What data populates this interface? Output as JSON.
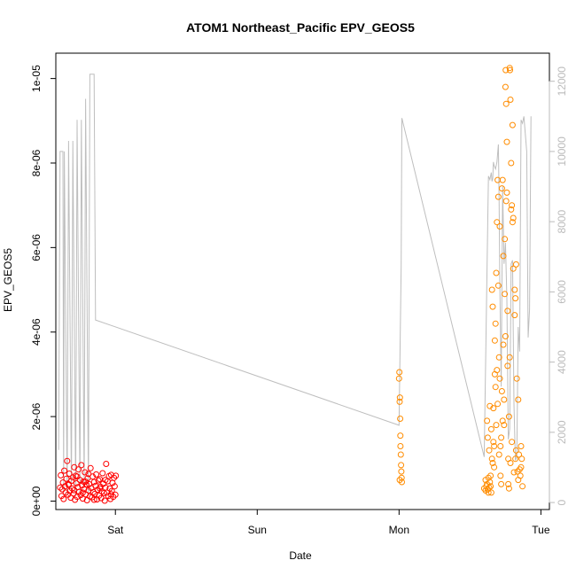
{
  "chart_data": {
    "type": "scatter",
    "title": "ATOM1 Northeast_Pacific EPV_GEOS5",
    "xlabel": "Date",
    "ylabel": "EPV_GEOS5",
    "x_unit": "days",
    "xlim": [
      -0.42,
      3.06
    ],
    "ylim": [
      -2e-07,
      1.06e-05
    ],
    "y2lim": [
      -200,
      12800
    ],
    "x_ticks": [
      {
        "value": 0,
        "label": "Sat"
      },
      {
        "value": 1,
        "label": "Sun"
      },
      {
        "value": 2,
        "label": "Mon"
      },
      {
        "value": 3,
        "label": "Tue"
      }
    ],
    "y_ticks": [
      {
        "value": 0,
        "label": "0e+00"
      },
      {
        "value": 2e-06,
        "label": "2e-06"
      },
      {
        "value": 4e-06,
        "label": "4e-06"
      },
      {
        "value": 6e-06,
        "label": "6e-06"
      },
      {
        "value": 8e-06,
        "label": "8e-06"
      },
      {
        "value": 1e-05,
        "label": "1e-05"
      }
    ],
    "y2_ticks": [
      {
        "value": 0,
        "label": "0"
      },
      {
        "value": 2000,
        "label": "2000"
      },
      {
        "value": 4000,
        "label": "4000"
      },
      {
        "value": 6000,
        "label": "6000"
      },
      {
        "value": 8000,
        "label": "8000"
      },
      {
        "value": 10000,
        "label": "10000"
      },
      {
        "value": 12000,
        "label": "12000"
      }
    ],
    "grid": false,
    "colors": {
      "early": "#ff0000",
      "late": "#ff8c00",
      "altitude": "#bebebe",
      "axis": "#000000",
      "right_axis": "#bbbbbb"
    },
    "series": [
      {
        "values": [
          [
            -0.39,
            3.2e-07
          ],
          [
            -0.385,
            6.1e-07
          ],
          [
            -0.38,
            1.2e-07
          ],
          [
            -0.375,
            2.8e-07
          ],
          [
            -0.37,
            4.4e-07
          ],
          [
            -0.365,
            5e-08
          ],
          [
            -0.36,
            7.2e-07
          ],
          [
            -0.355,
            3.5e-07
          ],
          [
            -0.35,
            2e-07
          ],
          [
            -0.345,
            5.3e-07
          ],
          [
            -0.34,
            9.5e-07
          ],
          [
            -0.335,
            1.5e-07
          ],
          [
            -0.33,
            3.8e-07
          ],
          [
            -0.325,
            6.5e-07
          ],
          [
            -0.32,
            2.4e-07
          ],
          [
            -0.315,
            8e-08
          ],
          [
            -0.31,
            4.8e-07
          ],
          [
            -0.305,
            3e-07
          ],
          [
            -0.3,
            5.6e-07
          ],
          [
            -0.295,
            1.8e-07
          ],
          [
            -0.29,
            2.6e-07
          ],
          [
            -0.285,
            3e-08
          ],
          [
            -0.28,
            6e-07
          ],
          [
            -0.275,
            4.2e-07
          ],
          [
            -0.27,
            1e-07
          ],
          [
            -0.265,
            3.3e-07
          ],
          [
            -0.26,
            7.5e-07
          ],
          [
            -0.255,
            2.2e-07
          ],
          [
            -0.25,
            5e-07
          ],
          [
            -0.245,
            1.4e-07
          ],
          [
            -0.24,
            8.5e-07
          ],
          [
            -0.235,
            3.7e-07
          ],
          [
            -0.23,
            6e-08
          ],
          [
            -0.225,
            4.6e-07
          ],
          [
            -0.22,
            2.9e-07
          ],
          [
            -0.215,
            6.8e-07
          ],
          [
            -0.21,
            1.6e-07
          ],
          [
            -0.205,
            3.9e-07
          ],
          [
            -0.2,
            2e-08
          ],
          [
            -0.195,
            5.4e-07
          ],
          [
            -0.19,
            2.5e-07
          ],
          [
            -0.185,
            4e-07
          ],
          [
            -0.18,
            1.1e-07
          ],
          [
            -0.175,
            7.8e-07
          ],
          [
            -0.17,
            3.1e-07
          ],
          [
            -0.165,
            9e-08
          ],
          [
            -0.16,
            5.8e-07
          ],
          [
            -0.155,
            2.1e-07
          ],
          [
            -0.15,
            4.5e-07
          ],
          [
            -0.145,
            1.7e-07
          ],
          [
            -0.14,
            3.6e-07
          ],
          [
            -0.135,
            6.3e-07
          ],
          [
            -0.13,
            4e-08
          ],
          [
            -0.125,
            2.7e-07
          ],
          [
            -0.12,
            4.9e-07
          ],
          [
            -0.115,
            1.3e-07
          ],
          [
            -0.11,
            5.2e-07
          ],
          [
            -0.105,
            3.4e-07
          ],
          [
            -0.1,
            7e-08
          ],
          [
            -0.095,
            2.3e-07
          ],
          [
            -0.09,
            6.6e-07
          ],
          [
            -0.085,
            4.1e-07
          ],
          [
            -0.08,
            1.9e-07
          ],
          [
            -0.075,
            1e-08
          ],
          [
            -0.07,
            3.2e-07
          ],
          [
            -0.065,
            8.8e-07
          ],
          [
            -0.06,
            2e-07
          ],
          [
            -0.055,
            4.7e-07
          ],
          [
            -0.05,
            1.2e-07
          ],
          [
            -0.045,
            5.9e-07
          ],
          [
            -0.04,
            3e-07
          ],
          [
            -0.035,
            5e-08
          ],
          [
            -0.03,
            6.2e-07
          ],
          [
            -0.025,
            2.4e-07
          ],
          [
            -0.02,
            4.3e-07
          ],
          [
            -0.015,
            1e-07
          ],
          [
            -0.01,
            5.5e-07
          ],
          [
            -0.005,
            3.5e-07
          ],
          [
            0.0,
            1.5e-07
          ],
          [
            0.003,
            6e-07
          ],
          [
            -0.33,
            4e-07
          ],
          [
            -0.27,
            5.8e-07
          ],
          [
            -0.23,
            2e-07
          ],
          [
            -0.19,
            6.4e-07
          ],
          [
            -0.15,
            3e-08
          ],
          [
            -0.11,
            3e-07
          ],
          [
            -0.07,
            5e-07
          ],
          [
            -0.03,
            1.6e-07
          ],
          [
            -0.29,
            8e-07
          ],
          [
            -0.21,
            4.6e-07
          ]
        ]
      },
      {
        "values": [
          [
            2.0,
            2.9e-06
          ],
          [
            2.002,
            3.05e-06
          ],
          [
            2.004,
            2.35e-06
          ],
          [
            2.006,
            2.45e-06
          ],
          [
            2.008,
            1.95e-06
          ],
          [
            2.009,
            1.55e-06
          ],
          [
            2.01,
            1.3e-06
          ],
          [
            2.012,
            1.1e-06
          ],
          [
            2.014,
            8.5e-07
          ],
          [
            2.016,
            7e-07
          ],
          [
            2.018,
            5.5e-07
          ],
          [
            2.02,
            4.5e-07
          ],
          [
            2.005,
            5e-07
          ],
          [
            2.6,
            3e-07
          ],
          [
            2.61,
            5e-07
          ],
          [
            2.62,
            1.9e-06
          ],
          [
            2.625,
            1.5e-06
          ],
          [
            2.63,
            2e-07
          ],
          [
            2.635,
            1.2e-06
          ],
          [
            2.64,
            2.25e-06
          ],
          [
            2.645,
            3.5e-07
          ],
          [
            2.65,
            1.7e-06
          ],
          [
            2.655,
            5e-06
          ],
          [
            2.66,
            4.6e-06
          ],
          [
            2.665,
            2.2e-06
          ],
          [
            2.67,
            8e-07
          ],
          [
            2.675,
            3.8e-06
          ],
          [
            2.68,
            2.7e-06
          ],
          [
            2.685,
            5.4e-06
          ],
          [
            2.69,
            6.6e-06
          ],
          [
            2.695,
            7.6e-06
          ],
          [
            2.7,
            7.2e-06
          ],
          [
            2.705,
            3.4e-06
          ],
          [
            2.71,
            2.9e-06
          ],
          [
            2.715,
            1.3e-06
          ],
          [
            2.72,
            4e-07
          ],
          [
            2.725,
            7.4e-06
          ],
          [
            2.73,
            1.9e-06
          ],
          [
            2.735,
            5.8e-06
          ],
          [
            2.74,
            2.4e-06
          ],
          [
            2.745,
            4.9e-06
          ],
          [
            2.75,
            9.8e-06
          ],
          [
            2.752,
            1.02e-05
          ],
          [
            2.755,
            9.4e-06
          ],
          [
            2.76,
            8.5e-06
          ],
          [
            2.765,
            4.5e-06
          ],
          [
            2.77,
            1e-06
          ],
          [
            2.775,
            3e-07
          ],
          [
            2.78,
            1.025e-05
          ],
          [
            2.782,
            1.02e-05
          ],
          [
            2.785,
            9.5e-06
          ],
          [
            2.79,
            8e-06
          ],
          [
            2.795,
            7e-06
          ],
          [
            2.8,
            6.6e-06
          ],
          [
            2.805,
            5.5e-06
          ],
          [
            2.81,
            6.8e-07
          ],
          [
            2.815,
            4.4e-06
          ],
          [
            2.82,
            4.8e-06
          ],
          [
            2.825,
            5.6e-06
          ],
          [
            2.83,
            2.9e-06
          ],
          [
            2.835,
            7e-07
          ],
          [
            2.84,
            2.4e-06
          ],
          [
            2.845,
            1.1e-06
          ],
          [
            2.85,
            7.5e-07
          ],
          [
            2.855,
            6e-07
          ],
          [
            2.86,
            8e-07
          ],
          [
            2.865,
            1e-06
          ],
          [
            2.87,
            3.5e-07
          ],
          [
            2.655,
            1e-06
          ],
          [
            2.665,
            1.4e-06
          ],
          [
            2.675,
            3e-06
          ],
          [
            2.685,
            1.8e-06
          ],
          [
            2.695,
            2.3e-06
          ],
          [
            2.705,
            1.1e-06
          ],
          [
            2.715,
            6e-07
          ],
          [
            2.725,
            2.6e-06
          ],
          [
            2.735,
            3.7e-06
          ],
          [
            2.745,
            6.2e-06
          ],
          [
            2.755,
            7.1e-06
          ],
          [
            2.765,
            3.2e-06
          ],
          [
            2.775,
            2e-06
          ],
          [
            2.785,
            9e-07
          ],
          [
            2.795,
            1.4e-06
          ],
          [
            2.805,
            6.7e-06
          ],
          [
            2.815,
            5e-06
          ],
          [
            2.825,
            1.2e-06
          ],
          [
            2.61,
            2.5e-07
          ],
          [
            2.615,
            3.5e-07
          ],
          [
            2.62,
            4e-07
          ],
          [
            2.625,
            2.8e-07
          ],
          [
            2.63,
            5.5e-07
          ],
          [
            2.635,
            3.2e-07
          ],
          [
            2.64,
            4.5e-07
          ],
          [
            2.645,
            6e-07
          ],
          [
            2.65,
            2e-07
          ],
          [
            2.66,
            9e-07
          ],
          [
            2.67,
            1.3e-06
          ],
          [
            2.68,
            4.2e-06
          ],
          [
            2.69,
            3.1e-06
          ],
          [
            2.7,
            5.1e-06
          ],
          [
            2.71,
            6.5e-06
          ],
          [
            2.72,
            1.5e-06
          ],
          [
            2.73,
            7.6e-06
          ],
          [
            2.74,
            1.8e-06
          ],
          [
            2.75,
            3.9e-06
          ],
          [
            2.76,
            7.3e-06
          ],
          [
            2.77,
            4e-07
          ],
          [
            2.78,
            3.4e-06
          ],
          [
            2.79,
            6.9e-06
          ],
          [
            2.8,
            8.9e-06
          ],
          [
            2.82,
            1e-06
          ],
          [
            2.84,
            5e-07
          ],
          [
            2.86,
            1.3e-06
          ]
        ]
      },
      {
        "values": [
          [
            -0.4,
            1500
          ],
          [
            -0.39,
            10000
          ],
          [
            -0.37,
            10000
          ],
          [
            -0.365,
            300
          ],
          [
            -0.36,
            10000
          ],
          [
            -0.34,
            200
          ],
          [
            -0.33,
            10300
          ],
          [
            -0.31,
            300
          ],
          [
            -0.3,
            10300
          ],
          [
            -0.28,
            200
          ],
          [
            -0.27,
            10900
          ],
          [
            -0.25,
            300
          ],
          [
            -0.24,
            10900
          ],
          [
            -0.22,
            500
          ],
          [
            -0.21,
            11500
          ],
          [
            -0.19,
            200
          ],
          [
            -0.18,
            12200
          ],
          [
            -0.15,
            12200
          ],
          [
            -0.14,
            5200
          ],
          [
            2.0,
            2200
          ],
          [
            2.015,
            6700
          ],
          [
            2.02,
            10950
          ],
          [
            2.6,
            1300
          ],
          [
            2.63,
            9300
          ],
          [
            2.64,
            9200
          ],
          [
            2.65,
            9400
          ],
          [
            2.655,
            9150
          ],
          [
            2.66,
            9200
          ],
          [
            2.665,
            9700
          ],
          [
            2.67,
            9600
          ],
          [
            2.68,
            9500
          ],
          [
            2.69,
            9700
          ],
          [
            2.7,
            10200
          ],
          [
            2.705,
            8700
          ],
          [
            2.71,
            6300
          ],
          [
            2.72,
            3300
          ],
          [
            2.73,
            9000
          ],
          [
            2.74,
            6800
          ],
          [
            2.75,
            7400
          ],
          [
            2.76,
            5800
          ],
          [
            2.77,
            1800
          ],
          [
            2.78,
            2100
          ],
          [
            2.79,
            6800
          ],
          [
            2.8,
            6900
          ],
          [
            2.81,
            2800
          ],
          [
            2.82,
            1200
          ],
          [
            2.83,
            1300
          ],
          [
            2.84,
            5000
          ],
          [
            2.85,
            4300
          ],
          [
            2.86,
            10900
          ],
          [
            2.87,
            10800
          ],
          [
            2.88,
            11000
          ],
          [
            2.9,
            10000
          ],
          [
            2.91,
            4700
          ],
          [
            2.92,
            5500
          ],
          [
            2.93,
            11000
          ]
        ]
      }
    ]
  }
}
